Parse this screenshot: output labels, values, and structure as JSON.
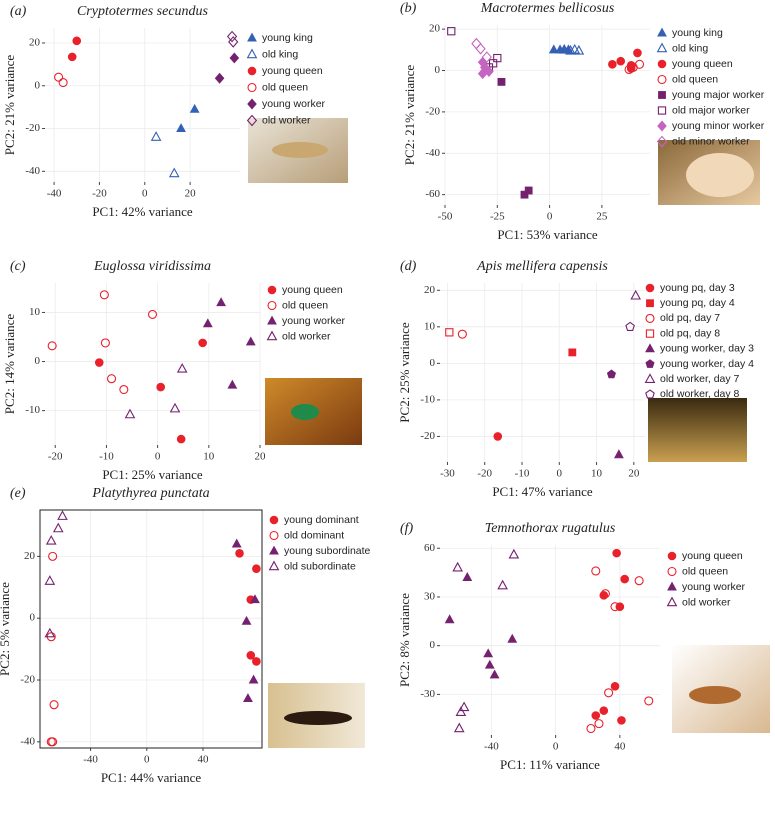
{
  "chart_data": [
    {
      "type": "scatter",
      "panel": "(a)",
      "title": "Cryptotermes secundus",
      "xlabel": "PC1: 42% variance",
      "ylabel": "PC2: 21% variance",
      "xlim": [
        -44,
        42
      ],
      "ylim": [
        -45,
        27
      ],
      "xticks": [
        -40,
        -20,
        0,
        20
      ],
      "yticks": [
        -40,
        -20,
        0,
        20
      ],
      "grid": true,
      "frame": false,
      "series": [
        {
          "name": "young king",
          "color": "#3461b5",
          "marker": "triangle",
          "filled": true,
          "x": [
            22,
            16
          ],
          "y": [
            -11,
            -20
          ]
        },
        {
          "name": "old king",
          "color": "#3461b5",
          "marker": "triangle",
          "filled": false,
          "x": [
            5,
            13
          ],
          "y": [
            -24,
            -41
          ]
        },
        {
          "name": "young queen",
          "color": "#e8212b",
          "marker": "circle",
          "filled": true,
          "x": [
            -30,
            -32
          ],
          "y": [
            21,
            13.5
          ]
        },
        {
          "name": "old queen",
          "color": "#e8212b",
          "marker": "circle",
          "filled": false,
          "x": [
            -38,
            -36
          ],
          "y": [
            4,
            1.5
          ]
        },
        {
          "name": "young worker",
          "color": "#74226f",
          "marker": "diamond",
          "filled": true,
          "x": [
            33,
            39.5
          ],
          "y": [
            3.5,
            13
          ]
        },
        {
          "name": "old worker",
          "color": "#74226f",
          "marker": "diamond",
          "filled": false,
          "x": [
            38.5,
            39
          ],
          "y": [
            23,
            20.5
          ]
        }
      ]
    },
    {
      "type": "scatter",
      "panel": "(b)",
      "title": "Macrotermes bellicosus",
      "xlabel": "PC1: 53% variance",
      "ylabel": "PC2: 21% variance",
      "xlim": [
        -50,
        48
      ],
      "ylim": [
        -65,
        22
      ],
      "xticks": [
        -50,
        -25,
        0,
        25
      ],
      "yticks": [
        -60,
        -40,
        -20,
        0,
        20
      ],
      "grid": true,
      "frame": false,
      "series": [
        {
          "name": "young king",
          "color": "#3461b5",
          "marker": "triangle",
          "filled": true,
          "x": [
            2,
            5,
            7,
            9
          ],
          "y": [
            10,
            10,
            10,
            10
          ]
        },
        {
          "name": "old king",
          "color": "#3461b5",
          "marker": "triangle",
          "filled": false,
          "x": [
            7,
            10,
            12,
            14
          ],
          "y": [
            10,
            9.5,
            10,
            9.5
          ]
        },
        {
          "name": "young queen",
          "color": "#e8212b",
          "marker": "circle",
          "filled": true,
          "x": [
            30,
            34,
            39,
            42,
            39
          ],
          "y": [
            3,
            4.5,
            2.5,
            8.5,
            1
          ]
        },
        {
          "name": "old queen",
          "color": "#e8212b",
          "marker": "circle",
          "filled": false,
          "x": [
            38,
            43,
            40
          ],
          "y": [
            0.5,
            3,
            1.5
          ]
        },
        {
          "name": "young major worker",
          "color": "#74226f",
          "marker": "square",
          "filled": true,
          "x": [
            -23,
            -12,
            -10
          ],
          "y": [
            -5.5,
            -60,
            -58
          ]
        },
        {
          "name": "old major worker",
          "color": "#74226f",
          "marker": "square",
          "filled": false,
          "x": [
            -47,
            -25,
            -29,
            -27
          ],
          "y": [
            19,
            6,
            1.5,
            3.5
          ]
        },
        {
          "name": "young minor worker",
          "color": "#c664c1",
          "marker": "diamond",
          "filled": true,
          "x": [
            -32,
            -31,
            -32,
            -29
          ],
          "y": [
            4,
            1.5,
            -1.5,
            -0.5
          ]
        },
        {
          "name": "old minor worker",
          "color": "#c664c1",
          "marker": "diamond",
          "filled": false,
          "x": [
            -35,
            -33,
            -30
          ],
          "y": [
            13,
            10.5,
            6.5
          ]
        }
      ]
    },
    {
      "type": "scatter",
      "panel": "(c)",
      "title": "Euglossa viridissima",
      "xlabel": "PC1: 25% variance",
      "ylabel": "PC2: 14% variance",
      "xlim": [
        -22,
        20
      ],
      "ylim": [
        -17,
        16
      ],
      "xticks": [
        -20,
        -10,
        0,
        10,
        20
      ],
      "yticks": [
        -10,
        0,
        10
      ],
      "grid": true,
      "frame": false,
      "series": [
        {
          "name": "young queen",
          "color": "#e8212b",
          "marker": "circle",
          "filled": true,
          "x": [
            -11.4,
            0.6,
            8.8,
            4.6
          ],
          "y": [
            -0.2,
            -5.2,
            3.8,
            -15.8
          ]
        },
        {
          "name": "old queen",
          "color": "#e8212b",
          "marker": "circle",
          "filled": false,
          "x": [
            -10.4,
            -20.6,
            -1,
            -10.2,
            -9,
            -6.6
          ],
          "y": [
            13.6,
            3.2,
            9.6,
            3.8,
            -3.5,
            -5.7
          ]
        },
        {
          "name": "young worker",
          "color": "#74226f",
          "marker": "triangle",
          "filled": true,
          "x": [
            12.4,
            9.8,
            18.2,
            14.6
          ],
          "y": [
            12,
            7.7,
            4,
            -4.8
          ]
        },
        {
          "name": "old worker",
          "color": "#74226f",
          "marker": "triangle",
          "filled": false,
          "x": [
            4.8,
            3.4,
            -5.4
          ],
          "y": [
            -1.5,
            -9.6,
            -10.8
          ]
        }
      ]
    },
    {
      "type": "scatter",
      "panel": "(d)",
      "title": "Apis mellifera capensis",
      "xlabel": "PC1: 47% variance",
      "ylabel": "PC2: 25% variance",
      "xlim": [
        -32,
        23
      ],
      "ylim": [
        -27,
        22
      ],
      "xticks": [
        -30,
        -20,
        -10,
        0,
        10,
        20
      ],
      "yticks": [
        -20,
        -10,
        0,
        10,
        20
      ],
      "grid": true,
      "frame": false,
      "series": [
        {
          "name": "young pq, day 3",
          "color": "#e8212b",
          "marker": "circle",
          "filled": true,
          "x": [
            -16.5
          ],
          "y": [
            -20
          ]
        },
        {
          "name": "young pq, day 4",
          "color": "#e8212b",
          "marker": "square",
          "filled": true,
          "x": [
            3.5
          ],
          "y": [
            3
          ]
        },
        {
          "name": "old pq, day 7",
          "color": "#e8212b",
          "marker": "circle",
          "filled": false,
          "x": [
            -26
          ],
          "y": [
            8
          ]
        },
        {
          "name": "old pq, day 8",
          "color": "#e8212b",
          "marker": "square",
          "filled": false,
          "x": [
            -29.5
          ],
          "y": [
            8.5
          ]
        },
        {
          "name": "young worker, day 3",
          "color": "#74226f",
          "marker": "triangle",
          "filled": true,
          "x": [
            16
          ],
          "y": [
            -25
          ]
        },
        {
          "name": "young worker, day 4",
          "color": "#74226f",
          "marker": "pentagon",
          "filled": true,
          "x": [
            14
          ],
          "y": [
            -3
          ]
        },
        {
          "name": "old worker, day 7",
          "color": "#74226f",
          "marker": "triangle",
          "filled": false,
          "x": [
            20.5
          ],
          "y": [
            18.5
          ]
        },
        {
          "name": "old worker, day 8",
          "color": "#74226f",
          "marker": "pentagon",
          "filled": false,
          "x": [
            19
          ],
          "y": [
            10
          ]
        }
      ]
    },
    {
      "type": "scatter",
      "panel": "(e)",
      "title": "Platythyrea punctata",
      "xlabel": "PC1: 44% variance",
      "ylabel": "PC2: 5% variance",
      "xlim": [
        -76,
        82
      ],
      "ylim": [
        -42,
        35
      ],
      "xticks": [
        -40,
        0,
        40
      ],
      "yticks": [
        -40,
        -20,
        0,
        20
      ],
      "grid": true,
      "frame": true,
      "series": [
        {
          "name": "young dominant",
          "color": "#e8212b",
          "marker": "circle",
          "filled": true,
          "x": [
            66,
            78,
            74,
            74,
            78
          ],
          "y": [
            21,
            16,
            6,
            -12,
            -14
          ]
        },
        {
          "name": "old dominant",
          "color": "#e8212b",
          "marker": "circle",
          "filled": false,
          "x": [
            -67,
            -68,
            -66,
            -68,
            -67
          ],
          "y": [
            20,
            -6,
            -28,
            -40,
            -40
          ]
        },
        {
          "name": "young subordinate",
          "color": "#74226f",
          "marker": "triangle",
          "filled": true,
          "x": [
            64,
            77,
            71,
            76,
            72
          ],
          "y": [
            24,
            6,
            -1,
            -20,
            -26
          ]
        },
        {
          "name": "old subordinate",
          "color": "#74226f",
          "marker": "triangle",
          "filled": false,
          "x": [
            -60,
            -63,
            -68,
            -69,
            -69
          ],
          "y": [
            33,
            29,
            25,
            12,
            -5
          ]
        }
      ]
    },
    {
      "type": "scatter",
      "panel": "(f)",
      "title": "Temnothorax rugatulus",
      "xlabel": "PC1: 11% variance",
      "ylabel": "PC2: 8% variance",
      "xlim": [
        -72,
        65
      ],
      "ylim": [
        -55,
        62
      ],
      "xticks": [
        -40,
        0,
        40
      ],
      "yticks": [
        -30,
        0,
        30,
        60
      ],
      "grid": true,
      "frame": false,
      "series": [
        {
          "name": "young queen",
          "color": "#e8212b",
          "marker": "circle",
          "filled": true,
          "x": [
            38,
            43,
            30,
            40,
            37,
            30,
            41,
            25
          ],
          "y": [
            57,
            41,
            31,
            24,
            -25,
            -40,
            -46,
            -43
          ]
        },
        {
          "name": "old queen",
          "color": "#e8212b",
          "marker": "circle",
          "filled": false,
          "x": [
            25,
            52,
            31,
            37,
            33,
            27,
            22,
            58
          ],
          "y": [
            46,
            40,
            32,
            24,
            -29,
            -48,
            -51,
            -34
          ]
        },
        {
          "name": "young worker",
          "color": "#74226f",
          "marker": "triangle",
          "filled": true,
          "x": [
            -66,
            -55,
            -42,
            -41,
            -38,
            -27
          ],
          "y": [
            16,
            42,
            -5,
            -12,
            -18,
            4
          ]
        },
        {
          "name": "old worker",
          "color": "#74226f",
          "marker": "triangle",
          "filled": false,
          "x": [
            -61,
            -26,
            -33,
            -57,
            -59,
            -60
          ],
          "y": [
            48,
            56,
            37,
            -38,
            -41,
            -51
          ]
        }
      ]
    }
  ]
}
